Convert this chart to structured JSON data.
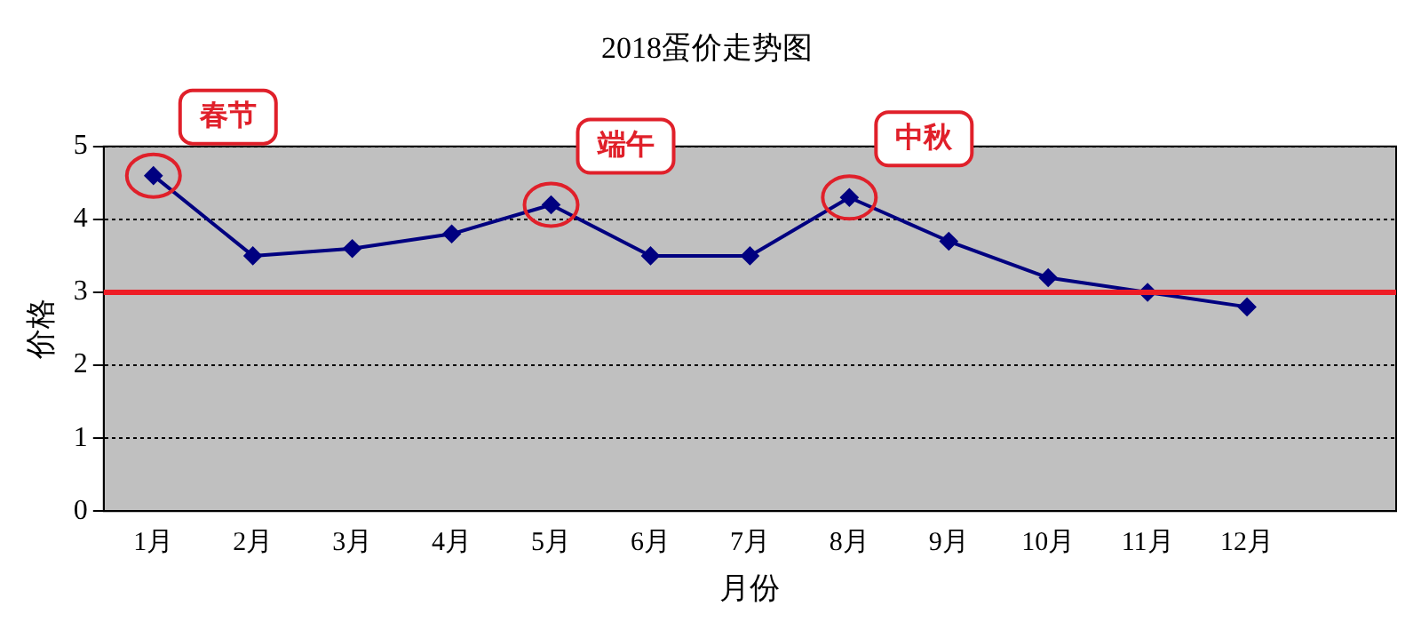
{
  "chart_data": {
    "type": "line",
    "title": "2018蛋价走势图",
    "xlabel": "月份",
    "ylabel": "价格",
    "categories": [
      "1月",
      "2月",
      "3月",
      "4月",
      "5月",
      "6月",
      "7月",
      "8月",
      "9月",
      "10月",
      "11月",
      "12月",
      null
    ],
    "series": [
      {
        "color": "#000080",
        "values": [
          4.6,
          3.5,
          3.6,
          3.8,
          4.2,
          3.5,
          3.5,
          4.3,
          3.7,
          3.2,
          3.0,
          2.8,
          null
        ]
      }
    ],
    "ylim": [
      0,
      5
    ],
    "yticks": [
      0,
      1,
      2,
      3,
      4,
      5
    ],
    "grid": "y",
    "marker": "diamond",
    "legend": false,
    "ref_lines": [
      {
        "axis": "y",
        "value": 3,
        "color": "#ee1c25"
      }
    ],
    "annotations": [
      {
        "text": "春节",
        "x": "1月",
        "y": 4.6
      },
      {
        "text": "端午",
        "x": "5月",
        "y": 4.2
      },
      {
        "text": "中秋",
        "x": "8月",
        "y": 4.3
      }
    ]
  }
}
